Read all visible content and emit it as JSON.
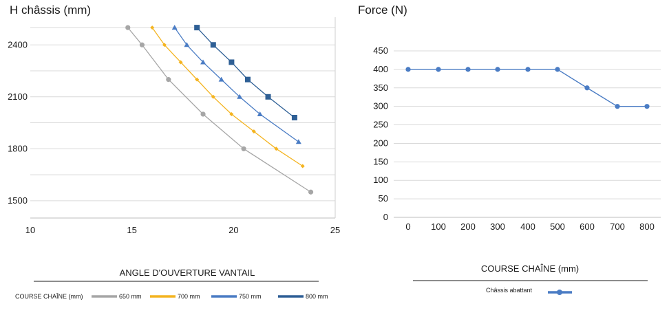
{
  "chart_data": [
    {
      "type": "line",
      "title": "H châssis (mm)",
      "xlabel": "ANGLE D'OUVERTURE VANTAIL",
      "ylabel": "",
      "xlim": [
        10,
        25
      ],
      "ylim": [
        1400,
        2560
      ],
      "x_ticks": [
        10,
        15,
        20,
        25
      ],
      "y_ticks": [
        1500,
        1800,
        2100,
        2400
      ],
      "y_gridlines": [
        1500,
        1650,
        1800,
        1950,
        2100,
        2250,
        2400,
        2500
      ],
      "grid": true,
      "legend_title": "COURSE CHAÎNE (mm)",
      "legend_position": "bottom",
      "series": [
        {
          "name": "650 mm",
          "color": "#a6a6a6",
          "marker": "circle",
          "x": [
            14.8,
            15.5,
            16.8,
            18.5,
            20.5,
            23.8
          ],
          "y": [
            2500,
            2400,
            2200,
            2000,
            1800,
            1550
          ]
        },
        {
          "name": "700 mm",
          "color": "#f4b420",
          "marker": "diamond",
          "x": [
            16.0,
            16.6,
            17.4,
            18.2,
            19.0,
            19.9,
            21.0,
            22.1,
            23.4
          ],
          "y": [
            2500,
            2400,
            2300,
            2200,
            2100,
            2000,
            1900,
            1800,
            1700
          ]
        },
        {
          "name": "750 mm",
          "color": "#4a7cc4",
          "marker": "triangle",
          "x": [
            17.1,
            17.7,
            18.5,
            19.4,
            20.3,
            21.3,
            23.2
          ],
          "y": [
            2500,
            2400,
            2300,
            2200,
            2100,
            2000,
            1840
          ]
        },
        {
          "name": "800 mm",
          "color": "#2e5f95",
          "marker": "square",
          "x": [
            18.2,
            19.0,
            19.9,
            20.7,
            21.7,
            23.0
          ],
          "y": [
            2500,
            2400,
            2300,
            2200,
            2100,
            1980
          ]
        }
      ]
    },
    {
      "type": "line",
      "title": "Force (N)",
      "xlabel": "COURSE CHAÎNE (mm)",
      "ylabel": "",
      "ylim": [
        0,
        450
      ],
      "x_ticks": [
        0,
        100,
        200,
        300,
        400,
        500,
        600,
        700,
        800
      ],
      "y_ticks": [
        0,
        50,
        100,
        150,
        200,
        250,
        300,
        350,
        400,
        450
      ],
      "grid": true,
      "legend_position": "bottom",
      "series": [
        {
          "name": "Châssis abattant",
          "color": "#4a7cc4",
          "marker": "circle",
          "x": [
            0,
            100,
            200,
            300,
            400,
            500,
            600,
            700,
            800
          ],
          "y": [
            400,
            400,
            400,
            400,
            400,
            400,
            350,
            300,
            300
          ]
        }
      ]
    }
  ]
}
